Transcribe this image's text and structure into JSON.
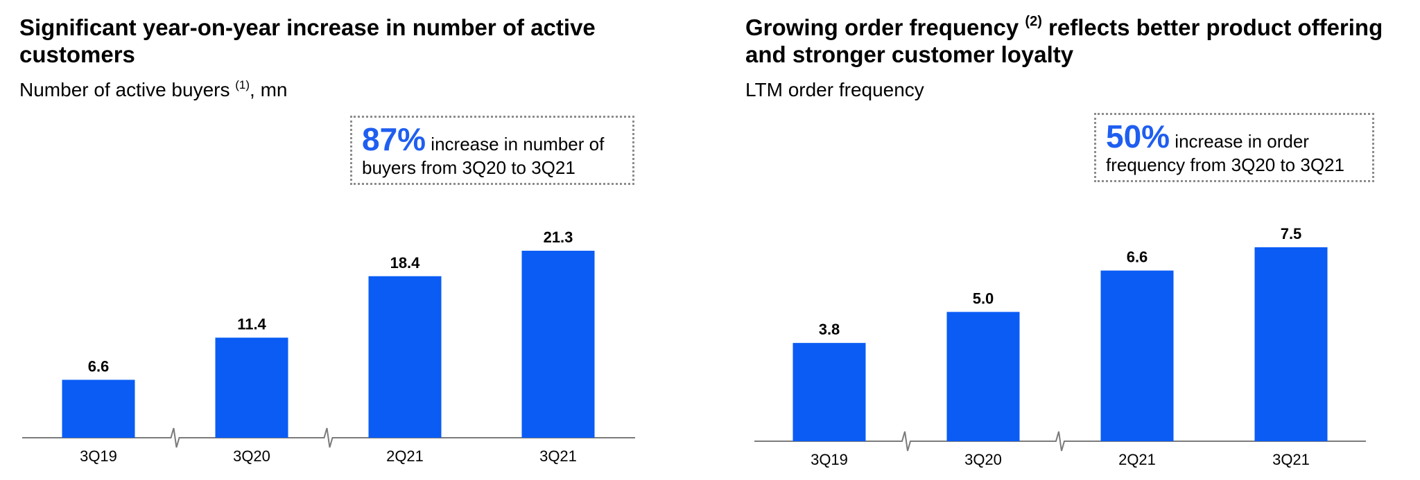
{
  "left": {
    "title_line1": "Significant year-on-year increase in number of active",
    "title_line2": "customers",
    "subtitle_pre": "Number of active buyers",
    "subtitle_sup": "(1)",
    "subtitle_post": ", mn",
    "callout_pct": "87%",
    "callout_line1": " increase in number of",
    "callout_line2": "buyers from 3Q20 to 3Q21"
  },
  "right": {
    "title_pre": "Growing order frequency",
    "title_sup": "(2)",
    "title_post": " reflects better product offering",
    "title_line2": "and stronger customer loyalty",
    "subtitle": "LTM order frequency",
    "callout_pct": "50%",
    "callout_line1": " increase in order",
    "callout_line2": "frequency from 3Q20 to 3Q21"
  },
  "colors": {
    "bar": "#0a5cf5",
    "accent": "#1f5ef0",
    "axis": "#7a7a7a"
  },
  "chart_data": [
    {
      "type": "bar",
      "title": "Significant year-on-year increase in number of active customers",
      "ylabel": "Number of active buyers (1), mn",
      "categories": [
        "3Q19",
        "3Q20",
        "2Q21",
        "3Q21"
      ],
      "values": [
        6.6,
        11.4,
        18.4,
        21.3
      ],
      "labels": [
        "6.6",
        "11.4",
        "18.4",
        "21.3"
      ],
      "axis_breaks_after": [
        0,
        1
      ],
      "grid": false
    },
    {
      "type": "bar",
      "title": "Growing order frequency (2) reflects better product offering and stronger customer loyalty",
      "ylabel": "LTM order frequency",
      "categories": [
        "3Q19",
        "3Q20",
        "2Q21",
        "3Q21"
      ],
      "values": [
        3.8,
        5.0,
        6.6,
        7.5
      ],
      "labels": [
        "3.8",
        "5.0",
        "6.6",
        "7.5"
      ],
      "axis_breaks_after": [
        0,
        1
      ],
      "grid": false
    }
  ]
}
